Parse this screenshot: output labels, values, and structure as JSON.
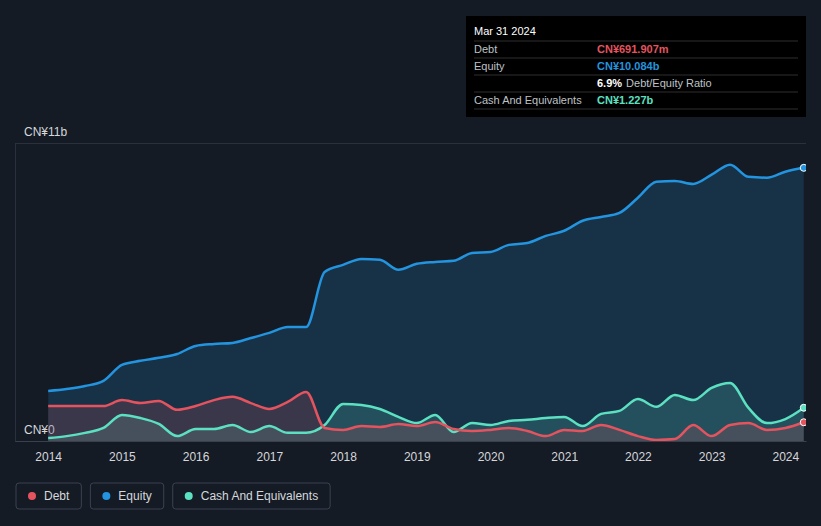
{
  "chart_data": {
    "type": "area",
    "x": [
      2014,
      2014.25,
      2014.5,
      2014.75,
      2015,
      2015.25,
      2015.5,
      2015.75,
      2016,
      2016.25,
      2016.5,
      2016.75,
      2017,
      2017.25,
      2017.5,
      2017.75,
      2018,
      2018.25,
      2018.5,
      2018.75,
      2019,
      2019.25,
      2019.5,
      2019.75,
      2020,
      2020.25,
      2020.5,
      2020.75,
      2021,
      2021.25,
      2021.5,
      2021.75,
      2022,
      2022.25,
      2022.5,
      2022.75,
      2023,
      2023.25,
      2023.5,
      2023.75,
      2024,
      2024.25
    ],
    "series": [
      {
        "name": "Debt",
        "color": "#e5535f",
        "values": [
          1.29,
          1.29,
          1.29,
          1.29,
          1.51,
          1.4,
          1.48,
          1.15,
          1.29,
          1.51,
          1.63,
          1.4,
          1.18,
          1.44,
          1.81,
          0.48,
          0.41,
          0.55,
          0.52,
          0.63,
          0.55,
          0.7,
          0.44,
          0.37,
          0.41,
          0.48,
          0.37,
          0.18,
          0.41,
          0.37,
          0.59,
          0.41,
          0.18,
          0.04,
          0.07,
          0.59,
          0.18,
          0.59,
          0.66,
          0.41,
          0.48,
          0.692
        ]
      },
      {
        "name": "Equity",
        "color": "#2394df",
        "values": [
          1.85,
          1.92,
          2.03,
          2.22,
          2.81,
          2.96,
          3.07,
          3.21,
          3.51,
          3.58,
          3.62,
          3.8,
          3.99,
          4.21,
          4.21,
          6.24,
          6.5,
          6.72,
          6.69,
          6.32,
          6.54,
          6.61,
          6.65,
          6.94,
          6.98,
          7.24,
          7.31,
          7.57,
          7.76,
          8.13,
          8.27,
          8.42,
          8.98,
          9.57,
          9.6,
          9.49,
          9.83,
          10.2,
          9.75,
          9.72,
          9.94,
          10.084
        ]
      },
      {
        "name": "Cash And Equivalents",
        "color": "#5ce0c2",
        "values": [
          0.11,
          0.18,
          0.3,
          0.48,
          0.96,
          0.85,
          0.63,
          0.18,
          0.44,
          0.44,
          0.59,
          0.33,
          0.55,
          0.3,
          0.3,
          0.59,
          1.37,
          1.33,
          1.18,
          0.89,
          0.66,
          0.96,
          0.33,
          0.66,
          0.59,
          0.74,
          0.78,
          0.85,
          0.89,
          0.55,
          1.0,
          1.11,
          1.55,
          1.26,
          1.7,
          1.51,
          1.96,
          2.14,
          1.22,
          0.66,
          0.81,
          1.227
        ]
      }
    ],
    "xlim": [
      2013.55,
      2024.28
    ],
    "xticks": [
      2014,
      2015,
      2016,
      2017,
      2018,
      2019,
      2020,
      2021,
      2022,
      2023,
      2024
    ],
    "ylim": [
      0,
      11
    ],
    "yticks": [
      {
        "value": 0,
        "label": "CN¥0"
      },
      {
        "value": 11,
        "label": "CN¥11b"
      }
    ],
    "grid": true,
    "legend": "bottom-left",
    "annotation": {
      "title": "Mar 31 2024",
      "rows": [
        {
          "label": "Debt",
          "value": "CN¥691.907m"
        },
        {
          "label": "Equity",
          "value": "CN¥10.084b"
        },
        {
          "label": "Debt/Equity Ratio",
          "value": "6.9%"
        },
        {
          "label": "Cash And Equivalents",
          "value": "CN¥1.227b"
        }
      ]
    }
  }
}
